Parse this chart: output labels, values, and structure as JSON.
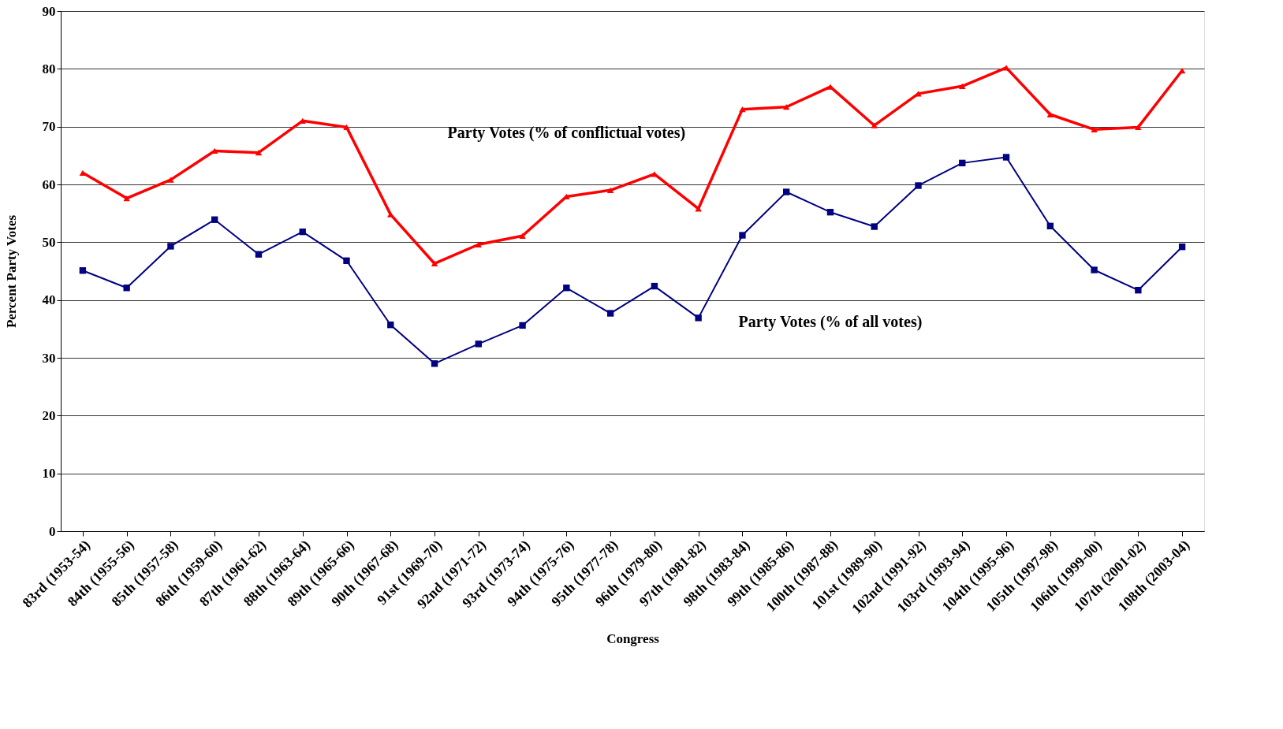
{
  "chart_data": {
    "type": "line",
    "xlabel": "Congress",
    "ylabel": "Percent Party Votes",
    "categories": [
      "83rd (1953-54)",
      "84th (1955-56)",
      "85th (1957-58)",
      "86th (1959-60)",
      "87th (1961-62)",
      "88th (1963-64)",
      "89th (1965-66)",
      "90th (1967-68)",
      "91st (1969-70)",
      "92nd (1971-72)",
      "93rd (1973-74)",
      "94th (1975-76)",
      "95th (1977-78)",
      "96th (1979-80)",
      "97th (1981-82)",
      "98th (1983-84)",
      "99th (1985-86)",
      "100th (1987-88)",
      "101st (1989-90)",
      "102nd (1991-92)",
      "103rd (1993-94)",
      "104th (1995-96)",
      "105th (1997-98)",
      "106th (1999-00)",
      "107th (2001-02)",
      "108th (2003-04)"
    ],
    "series": [
      {
        "name": "Party Votes (% of conflictual votes)",
        "color": "#ff0000",
        "marker": "triangle",
        "values": [
          62.0,
          57.6,
          60.8,
          65.8,
          65.5,
          71.0,
          69.9,
          54.8,
          46.3,
          49.6,
          51.1,
          57.9,
          59.0,
          61.8,
          55.8,
          73.0,
          73.4,
          76.9,
          70.2,
          75.7,
          77.0,
          80.2,
          72.1,
          69.5,
          69.9,
          79.7
        ]
      },
      {
        "name": "Party Votes (% of all votes)",
        "color": "#000080",
        "marker": "square",
        "values": [
          45.1,
          42.1,
          49.3,
          53.9,
          47.9,
          51.8,
          46.8,
          35.7,
          29.0,
          32.4,
          35.6,
          42.1,
          37.7,
          42.4,
          36.9,
          51.2,
          58.7,
          55.2,
          52.7,
          59.8,
          63.7,
          64.7,
          52.8,
          45.2,
          41.7,
          49.2
        ]
      }
    ],
    "ylim": [
      0,
      90
    ],
    "yticks": [
      0,
      10,
      20,
      30,
      40,
      50,
      60,
      70,
      80,
      90
    ],
    "grid": "y",
    "line_style": "solid"
  }
}
